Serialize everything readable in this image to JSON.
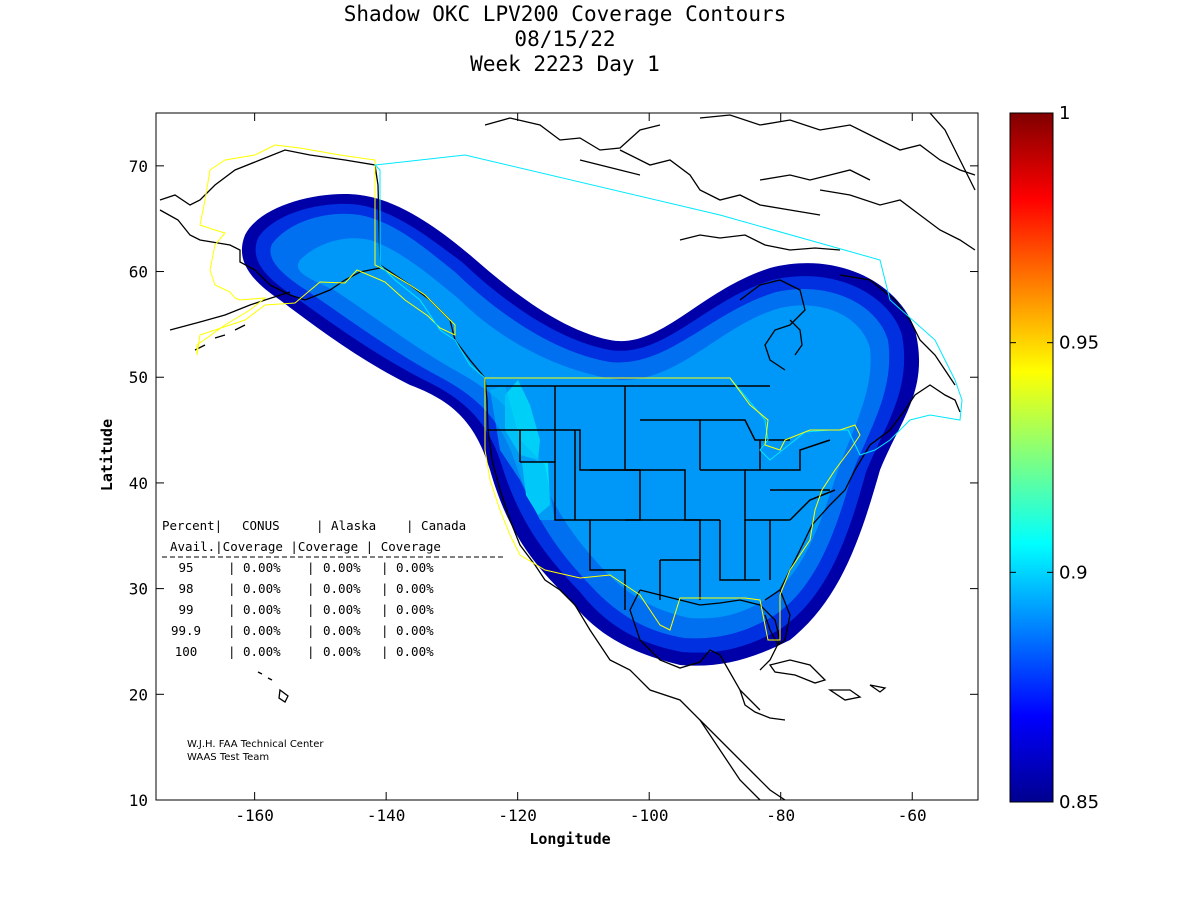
{
  "title": {
    "line1": "Shadow OKC LPV200 Coverage Contours",
    "line2": "08/15/22",
    "line3": "Week 2223 Day 1"
  },
  "axes": {
    "xlabel": "Longitude",
    "ylabel": "Latitude",
    "xlim": [
      -175,
      -50
    ],
    "ylim": [
      10,
      75
    ],
    "xticks": [
      -160,
      -140,
      -120,
      -100,
      -80,
      -60
    ],
    "yticks": [
      10,
      20,
      30,
      40,
      50,
      60,
      70
    ]
  },
  "colorbar": {
    "min": 0.85,
    "max": 1,
    "ticks": [
      "0.85",
      "0.9",
      "0.95",
      "1"
    ],
    "tick_values": [
      0.85,
      0.9,
      0.95,
      1.0
    ],
    "colormap": "jet"
  },
  "table": {
    "header1": [
      "Percent|",
      "CONUS",
      "| Alaska",
      "| Canada"
    ],
    "header2": [
      "Avail.|Coverage |Coverage | Coverage"
    ],
    "rows": [
      {
        "avail": "95",
        "conus": "0.00%",
        "alaska": "0.00%",
        "canada": "0.00%"
      },
      {
        "avail": "98",
        "conus": "0.00%",
        "alaska": "0.00%",
        "canada": "0.00%"
      },
      {
        "avail": "99",
        "conus": "0.00%",
        "alaska": "0.00%",
        "canada": "0.00%"
      },
      {
        "avail": "99.9",
        "conus": "0.00%",
        "alaska": "0.00%",
        "canada": "0.00%"
      },
      {
        "avail": "100",
        "conus": "0.00%",
        "alaska": "0.00%",
        "canada": "0.00%"
      }
    ]
  },
  "credit": {
    "line1": "W.J.H. FAA Technical Center",
    "line2": "WAAS Test Team"
  },
  "colors": {
    "coverage_outer": "#0000a8",
    "coverage_mid": "#0030e0",
    "coverage_inner": "#0070f0",
    "coverage_core": "#0098f8",
    "coverage_high": "#00d0f8",
    "alaska_boundary": "#ffff00",
    "canada_boundary": "#00e8ff"
  }
}
